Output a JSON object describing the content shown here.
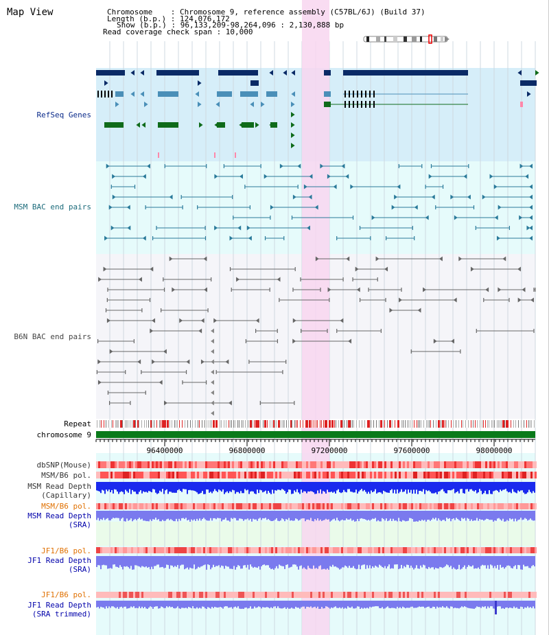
{
  "window": {
    "title": "Map View"
  },
  "header": {
    "lines": [
      "Chromosome    : Chromosome 9, reference assembly (C57BL/6J) (Build 37)",
      "Length (b.p.) : 124,076,172",
      "Show (b.p.) : 96,133,209-98,264,096 : 2,130,888 bp",
      "Read coverage check span : 10,000"
    ]
  },
  "tracks": {
    "refseq": "RefSeq Genes",
    "msm_bac": "MSM BAC end pairs",
    "b6n_bac": "B6N BAC end pairs",
    "repeat": "Repeat",
    "chromosome": "chromosome 9",
    "dbsnp": "dbSNP(Mouse)",
    "msm_b6_pol": "MSM/B6 pol.",
    "msm_depth_cap": "MSM Read Depth",
    "msm_depth_cap2": "(Capillary)",
    "msm_b6_pol2": "MSM/B6 pol.",
    "msm_depth_sra": "MSM Read Depth",
    "msm_depth_sra2": "(SRA)",
    "jf1_pol": "JF1/B6 pol.",
    "jf1_depth": "JF1 Read Depth",
    "jf1_depth2": "(SRA)",
    "jf1_pol2": "JF1/B6 pol.",
    "jf1_depth_trim": "JF1 Read Depth",
    "jf1_depth_trim2": "(SRA trimmed)"
  },
  "axis": {
    "ticks": [
      "96400000",
      "96800000",
      "97200000",
      "97600000",
      "98000000"
    ]
  },
  "colors": {
    "navy": "#0a2a66",
    "teal": "#2a7a9a",
    "green": "#0f6b1a",
    "gray": "#666666",
    "highlight": "#f8d6f0",
    "repeat_red": "#dd2222"
  }
}
